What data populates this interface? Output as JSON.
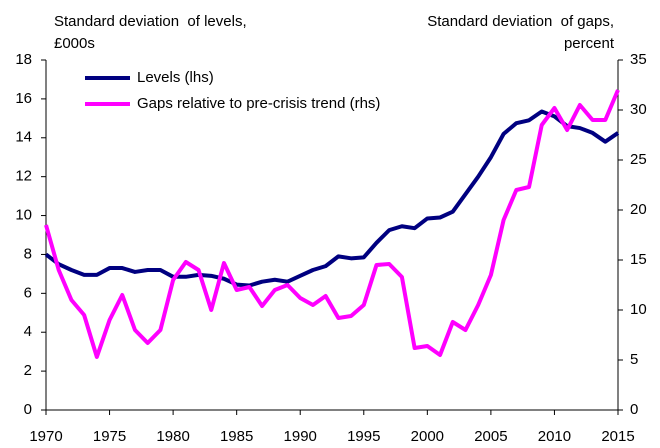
{
  "chart_data": {
    "type": "line",
    "y_label": [
      "Standard deviation  of levels,",
      "£000s"
    ],
    "y2_label": [
      "Standard deviation  of gaps,",
      "percent"
    ],
    "x": [
      1970,
      1971,
      1972,
      1973,
      1974,
      1975,
      1976,
      1977,
      1978,
      1979,
      1980,
      1981,
      1982,
      1983,
      1984,
      1985,
      1986,
      1987,
      1988,
      1989,
      1990,
      1991,
      1992,
      1993,
      1994,
      1995,
      1996,
      1997,
      1998,
      1999,
      2000,
      2001,
      2002,
      2003,
      2004,
      2005,
      2006,
      2007,
      2008,
      2009,
      2010,
      2011,
      2012,
      2013,
      2014,
      2015
    ],
    "series": [
      {
        "name": "Levels (lhs)",
        "color": "#000080",
        "values": [
          8.0,
          7.5,
          7.2,
          6.95,
          6.95,
          7.3,
          7.3,
          7.1,
          7.2,
          7.2,
          6.85,
          6.85,
          6.95,
          6.9,
          6.75,
          6.45,
          6.4,
          6.6,
          6.7,
          6.6,
          6.9,
          7.2,
          7.4,
          7.9,
          7.8,
          7.85,
          8.6,
          9.25,
          9.45,
          9.35,
          9.85,
          9.9,
          10.2,
          11.1,
          12.0,
          13.0,
          14.2,
          14.75,
          14.9,
          15.35,
          15.1,
          14.6,
          14.5,
          14.25,
          13.8,
          14.25
        ]
      },
      {
        "name": "Gaps relative to pre-crisis trend (rhs)",
        "color": "#ff00ff",
        "axis": "y2",
        "values": [
          18.5,
          14,
          11,
          9.5,
          5.3,
          9,
          11.5,
          8,
          6.7,
          8,
          13,
          14.8,
          14,
          10,
          14.7,
          12,
          12.3,
          10.4,
          12,
          12.5,
          11.2,
          10.5,
          11.4,
          9.2,
          9.4,
          10.5,
          14.5,
          14.6,
          13.3,
          6.2,
          6.4,
          5.5,
          8.8,
          8,
          10.5,
          13.5,
          19,
          22,
          22.3,
          28.5,
          30.2,
          28,
          30.5,
          29,
          29,
          32
        ]
      }
    ],
    "xlim": [
      1970,
      2015
    ],
    "xticks": [
      1970,
      1975,
      1980,
      1985,
      1990,
      1995,
      2000,
      2005,
      2010,
      2015
    ],
    "ylim": [
      0,
      18
    ],
    "yticks": [
      0,
      2,
      4,
      6,
      8,
      10,
      12,
      14,
      16,
      18
    ],
    "y2lim": [
      0,
      35
    ],
    "y2ticks": [
      0,
      5,
      10,
      15,
      20,
      25,
      30,
      35
    ],
    "grid": false,
    "legend": "upper left"
  }
}
